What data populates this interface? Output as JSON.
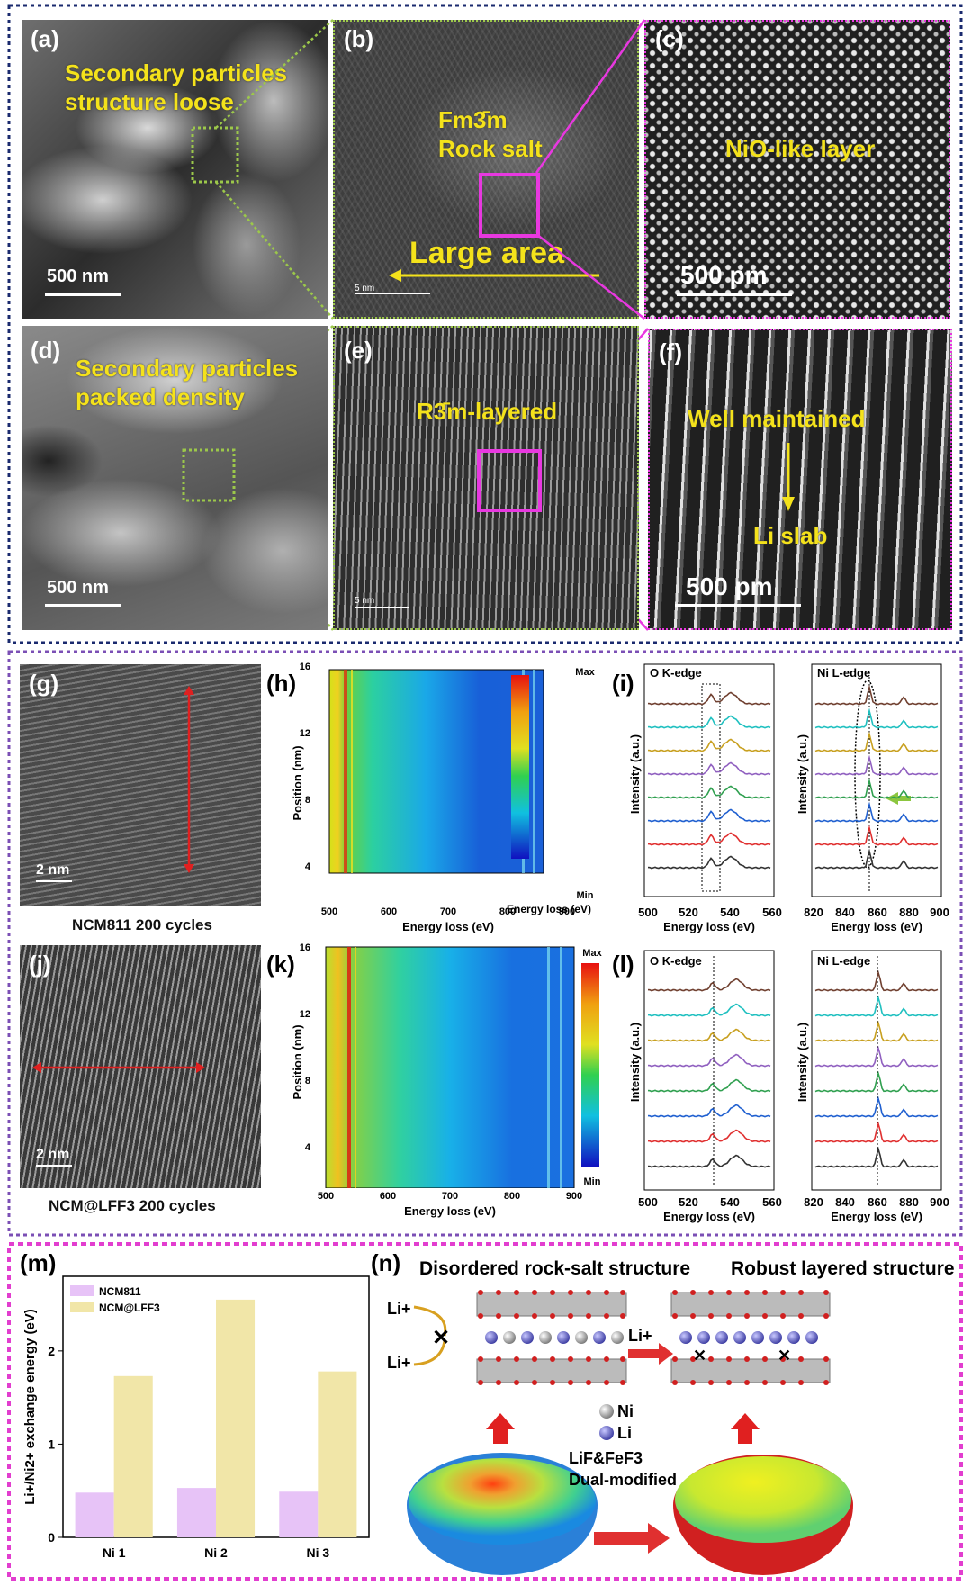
{
  "colors": {
    "navy_dash": "#1a2a6e",
    "purple_dash": "#7b4fb5",
    "magenta_dash": "#e23ecf",
    "green_dot": "#9cc84a",
    "magenta_box": "#e838e0",
    "yellow": "#f4e21b",
    "red_arrow": "#e02020",
    "ncm811": "#e7c3f7",
    "ncmlff3": "#f1e6a8"
  },
  "panel_a": {
    "tag": "(a)",
    "text1": "Secondary particles",
    "text2": "structure loose",
    "scale": "500 nm"
  },
  "panel_b": {
    "tag": "(b)",
    "text1": "Fm3̄m",
    "text2": "Rock salt",
    "arrow_text": "Large area",
    "scale": "5 nm"
  },
  "panel_c": {
    "tag": "(c)",
    "text1": "NiO-like layer",
    "scale": "500 pm"
  },
  "panel_d": {
    "tag": "(d)",
    "text1": "Secondary particles",
    "text2": "packed density",
    "scale": "500 nm"
  },
  "panel_e": {
    "tag": "(e)",
    "text1": "R3̄m-layered",
    "scale": "5 nm"
  },
  "panel_f": {
    "tag": "(f)",
    "text1": "Well maintained",
    "text2": "Li slab",
    "scale": "500 pm"
  },
  "panel_g": {
    "tag": "(g)",
    "scale": "2 nm",
    "caption": "NCM811 200 cycles"
  },
  "panel_j": {
    "tag": "(j)",
    "scale": "2 nm",
    "caption": "NCM@LFF3 200 cycles"
  },
  "panel_h": {
    "tag": "(h)",
    "ylabel": "Position (nm)",
    "xlabel": "Energy loss (eV)",
    "yticks": [
      "16",
      "12",
      "8",
      "4"
    ],
    "xticks": [
      "500",
      "600",
      "700",
      "800",
      "900"
    ],
    "cmax": "Max",
    "cmin": "Min"
  },
  "panel_k": {
    "tag": "(k)",
    "ylabel": "Position (nm)",
    "xlabel": "Energy loss (eV)",
    "yticks": [
      "16",
      "12",
      "8",
      "4"
    ],
    "xticks": [
      "500",
      "600",
      "700",
      "800",
      "900"
    ],
    "cmax": "Max",
    "cmin": "Min"
  },
  "panel_i": {
    "tag": "(i)",
    "left_title": "O K-edge",
    "right_title": "Ni L-edge",
    "ylabel": "Intensity (a.u.)",
    "xlabel": "Energy loss (eV)",
    "left_xticks": [
      "500",
      "520",
      "540",
      "560"
    ],
    "right_xticks": [
      "820",
      "840",
      "860",
      "880",
      "900"
    ]
  },
  "panel_l": {
    "tag": "(l)",
    "left_title": "O K-edge",
    "right_title": "Ni L-edge",
    "ylabel": "Intensity (a.u.)",
    "xlabel": "Energy loss (eV)",
    "left_xticks": [
      "500",
      "520",
      "540",
      "560"
    ],
    "right_xticks": [
      "820",
      "840",
      "860",
      "880",
      "900"
    ]
  },
  "panel_m": {
    "tag": "(m)"
  },
  "panel_n": {
    "tag": "(n)",
    "title_left": "Disordered rock-salt structure",
    "title_right": "Robust layered structure",
    "li_plus": "Li+",
    "legend_ni": "Ni",
    "legend_li": "Li",
    "mod1": "LiF&FeF3",
    "mod2": "Dual-modified"
  },
  "chart_data": {
    "type": "bar",
    "categories": [
      "Ni 1",
      "Ni 2",
      "Ni 3"
    ],
    "series": [
      {
        "name": "NCM811",
        "values": [
          0.48,
          0.53,
          0.49
        ]
      },
      {
        "name": "NCM@LFF3",
        "values": [
          1.73,
          2.55,
          1.78
        ]
      }
    ],
    "ylabel": "Li+/Ni2+ exchange energy (eV)",
    "yticks": [
      "0",
      "1",
      "2"
    ],
    "ylim": [
      0,
      2.8
    ],
    "legend": "top-left"
  }
}
